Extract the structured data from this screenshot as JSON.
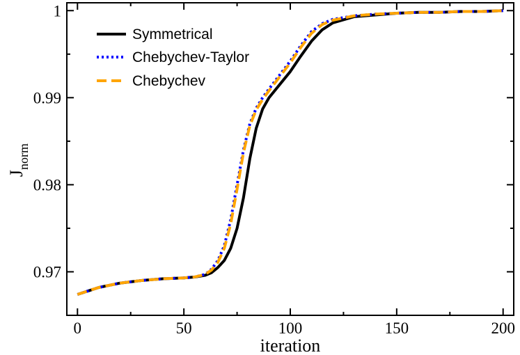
{
  "chart_data": {
    "type": "line",
    "title": "",
    "xlabel": "iteration",
    "ylabel": "J",
    "ylabel_subscript": "norm",
    "xlim": [
      -5,
      205
    ],
    "ylim": [
      0.965,
      1.0009
    ],
    "x_ticks": [
      0,
      50,
      100,
      150,
      200
    ],
    "x_tick_labels": [
      "0",
      "50",
      "100",
      "150",
      "200"
    ],
    "y_ticks": [
      0.97,
      0.98,
      0.99,
      1.0
    ],
    "y_tick_labels": [
      "0.97",
      "0.98",
      "0.99",
      "1"
    ],
    "legend_position": "top-left",
    "grid": false,
    "series": [
      {
        "name": "Symmetrical",
        "color": "#000000",
        "style": "solid",
        "x": [
          0,
          10,
          20,
          30,
          40,
          50,
          55,
          60,
          63,
          66,
          69,
          72,
          75,
          78,
          81,
          84,
          87,
          90,
          95,
          100,
          105,
          110,
          115,
          120,
          130,
          140,
          150,
          160,
          170,
          180,
          190,
          200
        ],
        "y": [
          0.9674,
          0.9682,
          0.9687,
          0.969,
          0.9692,
          0.9693,
          0.9694,
          0.9696,
          0.9699,
          0.9705,
          0.9713,
          0.9727,
          0.975,
          0.9785,
          0.983,
          0.9865,
          0.9887,
          0.99,
          0.9915,
          0.993,
          0.9948,
          0.9965,
          0.9978,
          0.9986,
          0.9993,
          0.9995,
          0.9997,
          0.9998,
          0.9998,
          0.9999,
          0.9999,
          1.0
        ]
      },
      {
        "name": "Chebychev-Taylor",
        "color": "#0000ff",
        "style": "dotted",
        "x": [
          0,
          10,
          20,
          30,
          40,
          50,
          55,
          60,
          63,
          66,
          69,
          72,
          75,
          78,
          81,
          84,
          87,
          90,
          95,
          100,
          105,
          110,
          115,
          120,
          130,
          140,
          150,
          160,
          170,
          180,
          190,
          200
        ],
        "y": [
          0.9674,
          0.9682,
          0.9687,
          0.969,
          0.9692,
          0.9693,
          0.9694,
          0.9697,
          0.9703,
          0.9713,
          0.973,
          0.976,
          0.98,
          0.984,
          0.987,
          0.9888,
          0.99,
          0.991,
          0.9926,
          0.9942,
          0.996,
          0.9976,
          0.9985,
          0.999,
          0.9994,
          0.9996,
          0.9997,
          0.9998,
          0.9998,
          0.9999,
          0.9999,
          1.0
        ]
      },
      {
        "name": "Chebychev",
        "color": "#ffa500",
        "style": "dashed",
        "x": [
          0,
          10,
          20,
          30,
          40,
          50,
          55,
          60,
          63,
          66,
          69,
          72,
          75,
          78,
          81,
          84,
          87,
          90,
          95,
          100,
          105,
          110,
          115,
          120,
          130,
          140,
          150,
          160,
          170,
          180,
          190,
          200
        ],
        "y": [
          0.9674,
          0.9682,
          0.9687,
          0.969,
          0.9692,
          0.9693,
          0.9694,
          0.9697,
          0.9702,
          0.9711,
          0.9727,
          0.9755,
          0.9795,
          0.9837,
          0.9868,
          0.9886,
          0.9898,
          0.9908,
          0.9924,
          0.994,
          0.9958,
          0.9974,
          0.9984,
          0.9989,
          0.9994,
          0.9996,
          0.9997,
          0.9998,
          0.9998,
          0.9999,
          0.9999,
          1.0
        ]
      }
    ]
  }
}
